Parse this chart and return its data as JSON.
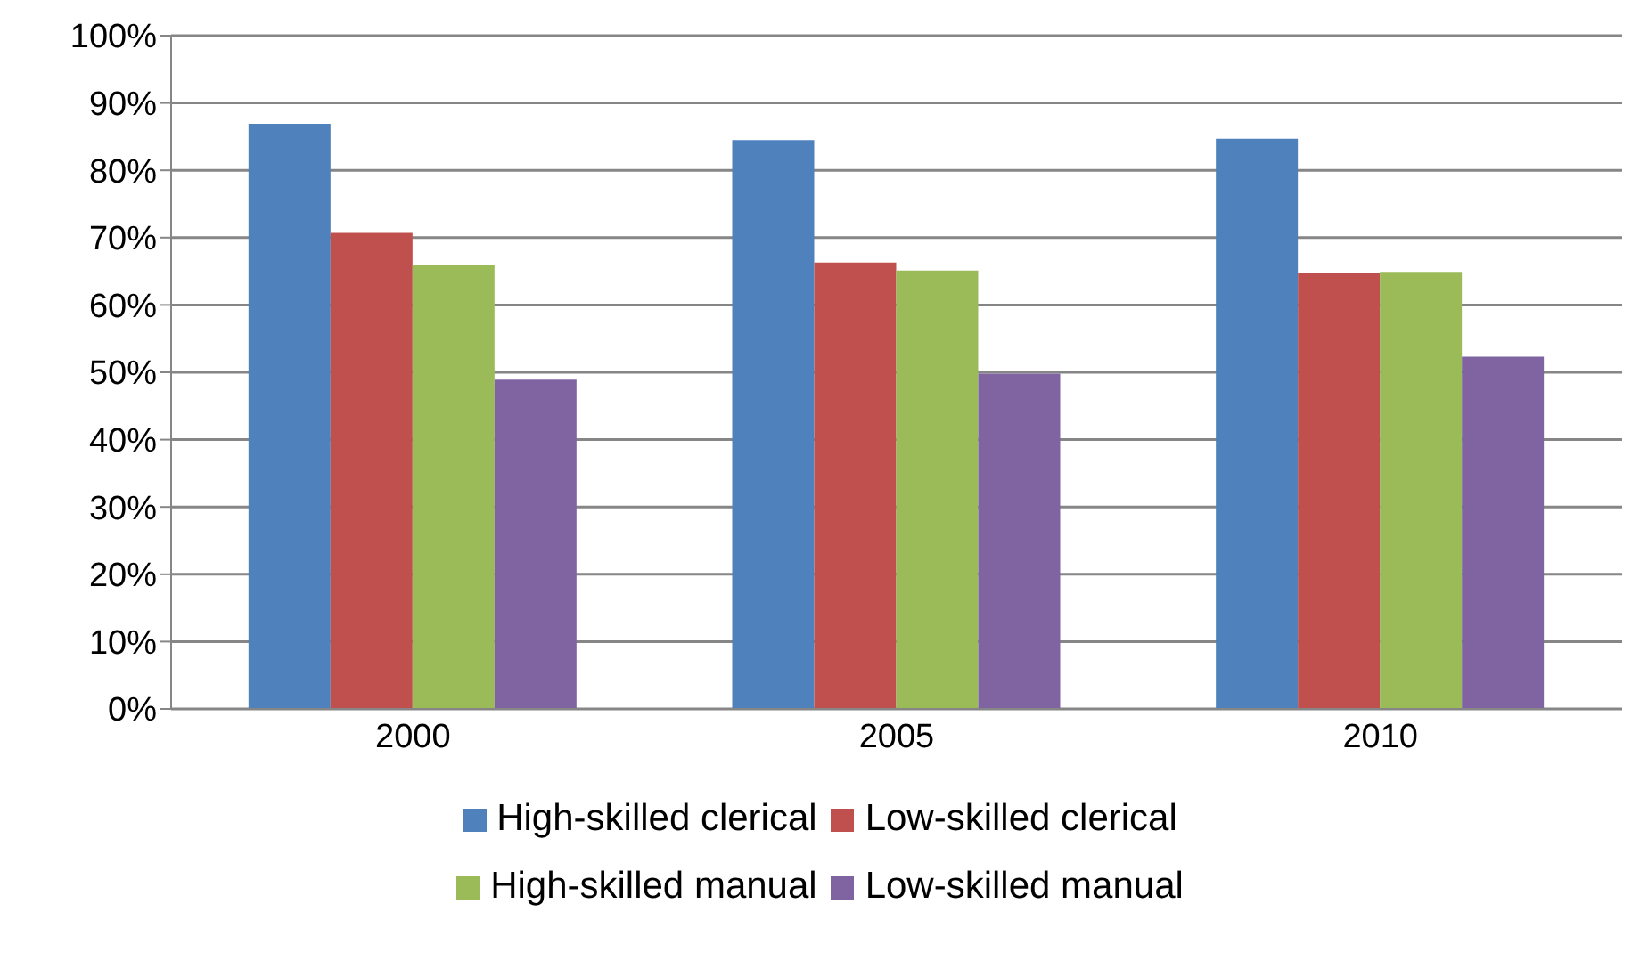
{
  "chart_data": {
    "type": "bar",
    "categories": [
      "2000",
      "2005",
      "2010"
    ],
    "series": [
      {
        "name": "High-skilled clerical",
        "color": "#4f81bd",
        "values": [
          86.9,
          84.5,
          84.7
        ]
      },
      {
        "name": "Low-skilled clerical",
        "color": "#c0504d",
        "values": [
          70.7,
          66.3,
          64.8
        ]
      },
      {
        "name": "High-skilled manual",
        "color": "#9bbb59",
        "values": [
          66.0,
          65.1,
          64.9
        ]
      },
      {
        "name": "Low-skilled manual",
        "color": "#8064a2",
        "values": [
          48.9,
          49.8,
          52.3
        ]
      }
    ],
    "ylim": [
      0,
      100
    ],
    "yticks": [
      {
        "value": 0,
        "label": "0%"
      },
      {
        "value": 10,
        "label": "10%"
      },
      {
        "value": 20,
        "label": "20%"
      },
      {
        "value": 30,
        "label": "30%"
      },
      {
        "value": 40,
        "label": "40%"
      },
      {
        "value": 50,
        "label": "50%"
      },
      {
        "value": 60,
        "label": "60%"
      },
      {
        "value": 70,
        "label": "70%"
      },
      {
        "value": 80,
        "label": "80%"
      },
      {
        "value": 90,
        "label": "90%"
      },
      {
        "value": 100,
        "label": "100%"
      }
    ],
    "grid": "y",
    "legend": "bottom"
  }
}
